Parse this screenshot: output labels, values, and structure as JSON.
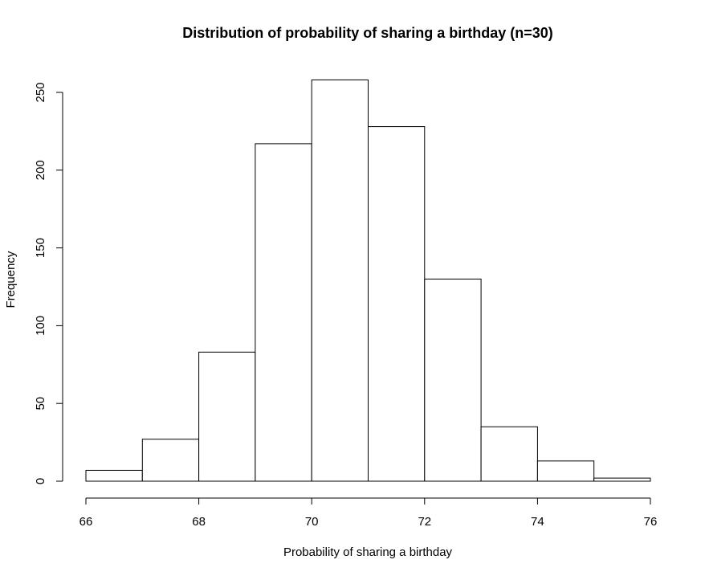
{
  "chart_data": {
    "type": "bar",
    "title": "Distribution of probability of sharing a birthday (n=30)",
    "xlabel": "Probability of sharing a birthday",
    "ylabel": "Frequency",
    "bin_edges": [
      66,
      67,
      68,
      69,
      70,
      71,
      72,
      73,
      74,
      75,
      76
    ],
    "values": [
      7,
      27,
      83,
      217,
      258,
      228,
      130,
      35,
      13,
      2
    ],
    "xlim": [
      66,
      76
    ],
    "ylim": [
      0,
      250
    ],
    "x_ticks": [
      66,
      68,
      70,
      72,
      74,
      76
    ],
    "y_ticks": [
      0,
      50,
      100,
      150,
      200,
      250
    ],
    "grid": false,
    "bar_fill": "#ffffff",
    "bar_stroke": "#000000"
  }
}
